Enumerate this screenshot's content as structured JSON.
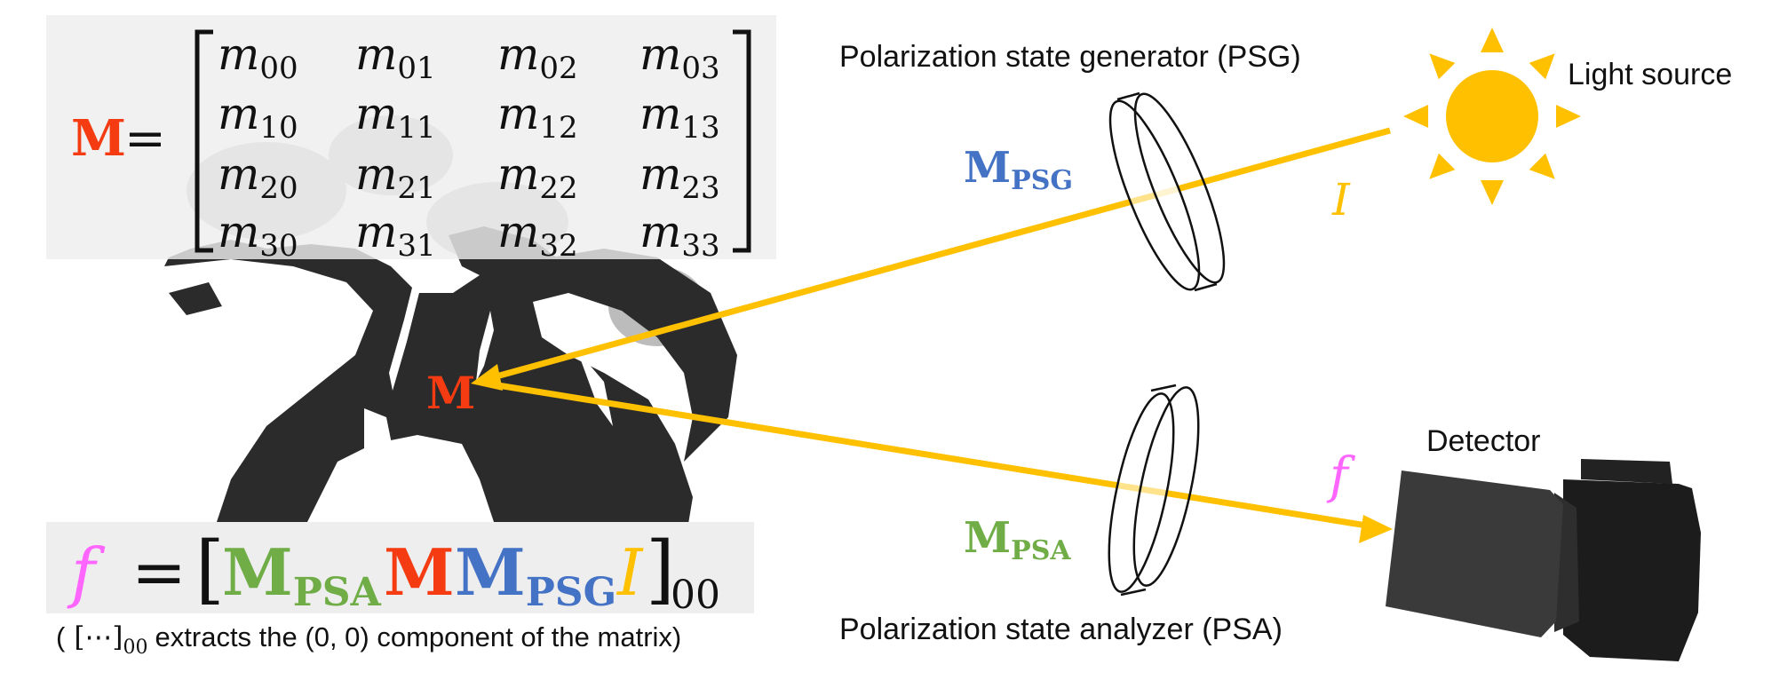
{
  "matrix_panel": {
    "symbol": "M",
    "equals": "=",
    "base": "m",
    "subscripts": [
      [
        "00",
        "01",
        "02",
        "03"
      ],
      [
        "10",
        "11",
        "12",
        "13"
      ],
      [
        "20",
        "21",
        "22",
        "23"
      ],
      [
        "30",
        "31",
        "32",
        "33"
      ]
    ]
  },
  "formula": {
    "f": "f",
    "equals": "=",
    "open_bracket": "[",
    "m_psa": {
      "base": "M",
      "sub": "PSA"
    },
    "m": "M",
    "m_psg": {
      "base": "M",
      "sub": "PSG"
    },
    "i": "I",
    "close_bracket": "]",
    "outer_sub": "00"
  },
  "footnote": {
    "open": "(",
    "bracket": "[⋯]",
    "sub": "00",
    "text": "extracts the (0, 0) component of the matrix)"
  },
  "labels": {
    "psg_title": "Polarization state generator (PSG)",
    "psa_title": "Polarization state analyzer (PSA)",
    "light_source": "Light source",
    "detector": "Detector",
    "m_psg": {
      "base": "M",
      "sub": "PSG"
    },
    "m_psa": {
      "base": "M",
      "sub": "PSA"
    },
    "object_m": "M",
    "i": "I",
    "f": "f"
  },
  "colors": {
    "red": "#f43b12",
    "blue": "#4472c4",
    "green": "#70ad47",
    "yellow": "#ffc000",
    "magenta": "#ff66ff",
    "panel_bg": "#eeeeee",
    "silhouette": "#2b2b2b"
  },
  "icons": {
    "light_source": "sun-icon",
    "detector": "camera-icon",
    "psg_filter": "polarizer-disc-icon",
    "psa_filter": "polarizer-disc-icon",
    "object": "dragon-silhouette"
  }
}
